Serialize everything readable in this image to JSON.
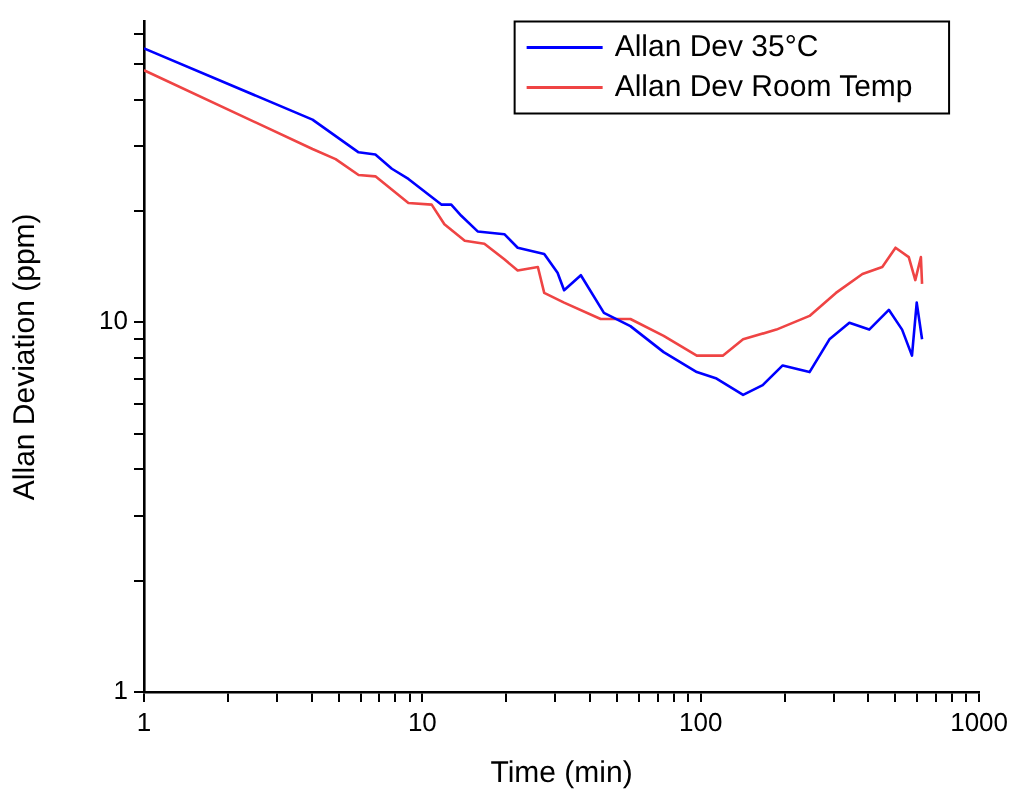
{
  "chart_data": {
    "type": "line",
    "xlabel": "Time (min)",
    "ylabel": "Allan Deviation (ppm)",
    "log": "xy",
    "xlim": [
      1,
      1000
    ],
    "ylim": [
      1,
      65
    ],
    "xticks": [
      1,
      {
        "value": 2,
        "label": null
      },
      {
        "value": 3,
        "label": null
      },
      {
        "value": 4,
        "label": null
      },
      {
        "value": 5,
        "label": null
      },
      {
        "value": 6,
        "label": null
      },
      {
        "value": 7,
        "label": null
      },
      {
        "value": 8,
        "label": null
      },
      {
        "value": 9,
        "label": null
      },
      10,
      {
        "value": 20,
        "label": null
      },
      {
        "value": 30,
        "label": null
      },
      {
        "value": 40,
        "label": null
      },
      {
        "value": 50,
        "label": null
      },
      {
        "value": 60,
        "label": null
      },
      {
        "value": 70,
        "label": null
      },
      {
        "value": 80,
        "label": null
      },
      {
        "value": 90,
        "label": null
      },
      100,
      {
        "value": 200,
        "label": null
      },
      {
        "value": 300,
        "label": null
      },
      {
        "value": 400,
        "label": null
      },
      {
        "value": 500,
        "label": null
      },
      {
        "value": 600,
        "label": null
      },
      {
        "value": 700,
        "label": null
      },
      {
        "value": 800,
        "label": null
      },
      {
        "value": 900,
        "label": null
      },
      1000
    ],
    "yticks": [
      1,
      {
        "value": 2,
        "label": null
      },
      {
        "value": 3,
        "label": null
      },
      {
        "value": 4,
        "label": null
      },
      {
        "value": 5,
        "label": null
      },
      {
        "value": 6,
        "label": null
      },
      {
        "value": 7,
        "label": null
      },
      {
        "value": 8,
        "label": null
      },
      {
        "value": 9,
        "label": null
      },
      10,
      {
        "value": 20,
        "label": null
      },
      {
        "value": 30,
        "label": null
      },
      {
        "value": 40,
        "label": null
      },
      {
        "value": 50,
        "label": null
      },
      {
        "value": 60,
        "label": null
      }
    ],
    "grid": false,
    "legend": "top right",
    "marker": "none",
    "line_style": "solid",
    "series": [
      {
        "name": "Allan Dev 35°C",
        "color": "#0000ff",
        "x": [
          1,
          4.03,
          5.9,
          6.78,
          7.77,
          8.91,
          11.7,
          12.7,
          13.8,
          15.8,
          19.7,
          22,
          27.4,
          30.6,
          32.3,
          37.1,
          44.9,
          55.9,
          73.6,
          96.8,
          114,
          142,
          167,
          197,
          246,
          290,
          342,
          403,
          474,
          529,
          574,
          597,
          624
        ],
        "values": [
          55,
          35.3,
          28.8,
          28.4,
          26,
          24.4,
          20.8,
          20.8,
          19.4,
          17.6,
          17.3,
          15.9,
          15.3,
          13.6,
          12.2,
          13.4,
          10.6,
          9.76,
          8.3,
          7.33,
          7.04,
          6.36,
          6.76,
          7.64,
          7.33,
          8.99,
          9.96,
          9.55,
          10.8,
          9.55,
          8.12,
          11.3,
          8.99
        ]
      },
      {
        "name": "Allan Dev Room Temp",
        "color": "#ef4444",
        "x": [
          1,
          4.03,
          4.88,
          5.9,
          6.78,
          8.91,
          10.8,
          12,
          14.2,
          16.7,
          19.7,
          22,
          26,
          27.4,
          32.3,
          43.7,
          55.9,
          73.6,
          96.8,
          120,
          142,
          187,
          246,
          306,
          381,
          449,
          501,
          559,
          590,
          618,
          624
        ],
        "values": [
          48,
          29.4,
          27.6,
          25,
          24.8,
          21,
          20.8,
          18.4,
          16.6,
          16.3,
          14.8,
          13.8,
          14.1,
          12,
          11.3,
          10.2,
          10.2,
          9.18,
          8.12,
          8.12,
          8.99,
          9.55,
          10.4,
          12,
          13.5,
          14.1,
          15.9,
          15,
          13,
          15,
          12.7
        ]
      }
    ]
  }
}
